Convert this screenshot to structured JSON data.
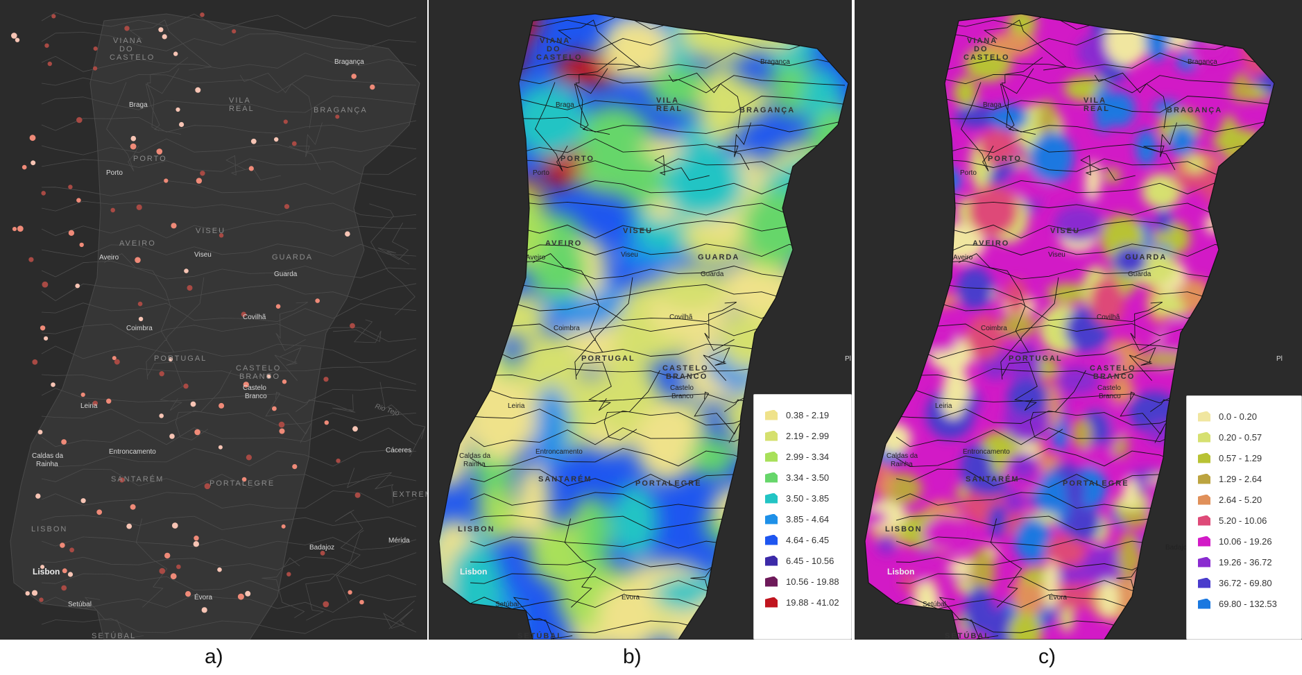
{
  "panels": [
    {
      "id": "a",
      "caption": "a)"
    },
    {
      "id": "b",
      "caption": "b)"
    },
    {
      "id": "c",
      "caption": "c)"
    }
  ],
  "places": {
    "viana": "VIANA",
    "do": "DO",
    "castelo": "CASTELO",
    "braganca": "Bragança",
    "braganca_region": "BRAGANÇA",
    "vila": "VILA",
    "real": "REAL",
    "braga": "Braga",
    "porto_region": "PORTO",
    "porto": "Porto",
    "viseu_region": "VISEU",
    "viseu": "Viseu",
    "aveiro_region": "AVEIRO",
    "aveiro": "Aveiro",
    "guarda_region": "GUARDA",
    "guarda": "Guarda",
    "covilha": "Covilhã",
    "coimbra": "Coimbra",
    "portugal": "PORTUGAL",
    "castelo_region": "CASTELO",
    "branco_region": "BRANCO",
    "castelo_city": "Castelo",
    "branco_city": "Branco",
    "leiria": "Leiria",
    "caldas": "Caldas da",
    "rainha": "Rainha",
    "entroncamento": "Entroncamento",
    "santarem": "SANTARÉM",
    "portalegre": "PORTALEGRE",
    "caceres": "Cáceres",
    "extrem": "EXTREM",
    "lisbon_region": "LISBON",
    "lisbon": "Lisbon",
    "setubal": "Setúbal",
    "setubal_region": "SETÚBAL",
    "evora": "Évora",
    "badajoz": "Badajoz",
    "merida": "Mérida",
    "rio_tejo": "Rio Tejo",
    "pl": "Pl"
  },
  "legend_b": [
    {
      "label": "0.38 - 2.19",
      "color": "#efe28a"
    },
    {
      "label": "2.19 - 2.99",
      "color": "#d5e06e"
    },
    {
      "label": "2.99 - 3.34",
      "color": "#a8e05a"
    },
    {
      "label": "3.34 - 3.50",
      "color": "#66d66a"
    },
    {
      "label": "3.50 - 3.85",
      "color": "#22c4c4"
    },
    {
      "label": "3.85 - 4.64",
      "color": "#1e90e8"
    },
    {
      "label": "4.64 - 6.45",
      "color": "#1e56f0"
    },
    {
      "label": "6.45 - 10.56",
      "color": "#3c2aa8"
    },
    {
      "label": "10.56 - 19.88",
      "color": "#6e1a5a"
    },
    {
      "label": "19.88 - 41.02",
      "color": "#c0141e"
    }
  ],
  "legend_c": [
    {
      "label": "0.0 - 0.20",
      "color": "#f0e6a0"
    },
    {
      "label": "0.20 - 0.57",
      "color": "#d6e070"
    },
    {
      "label": "0.57 - 1.29",
      "color": "#b8c234"
    },
    {
      "label": "1.29 - 2.64",
      "color": "#bca440"
    },
    {
      "label": "2.64 - 5.20",
      "color": "#e0905a"
    },
    {
      "label": "5.20 - 10.06",
      "color": "#de4a78"
    },
    {
      "label": "10.06 - 19.26",
      "color": "#d21ac6"
    },
    {
      "label": "19.26 - 36.72",
      "color": "#8a2cd0"
    },
    {
      "label": "36.72 - 69.80",
      "color": "#4a3ccc"
    },
    {
      "label": "69.80 - 132.53",
      "color": "#1a78e0"
    }
  ]
}
